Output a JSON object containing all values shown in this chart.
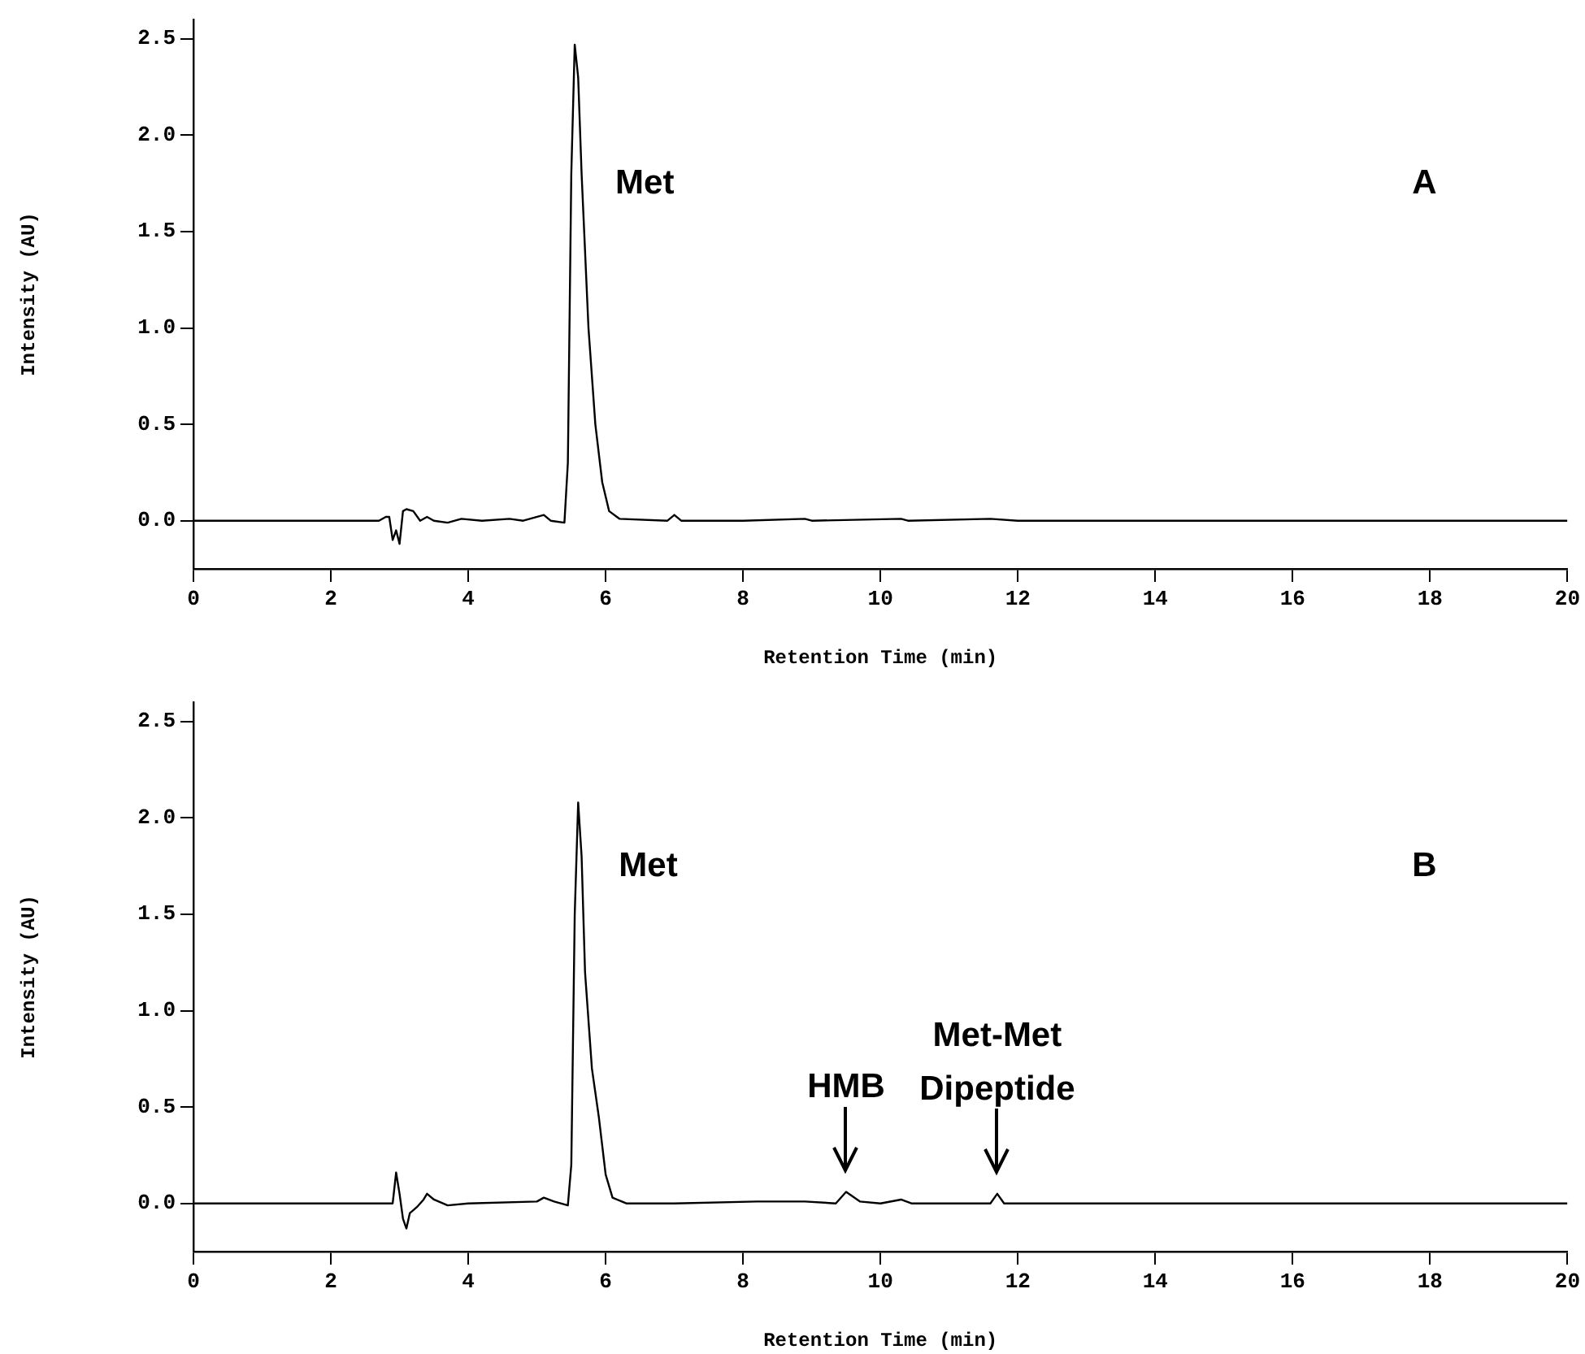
{
  "chart_data": [
    {
      "type": "line",
      "xlabel": "Retention Time (min)",
      "ylabel": "Intensity (AU)",
      "xlim": [
        0,
        20
      ],
      "ylim": [
        -0.25,
        2.6
      ],
      "xticks": [
        0,
        2,
        4,
        6,
        8,
        10,
        12,
        14,
        16,
        18,
        20
      ],
      "yticks": [
        {
          "value": 0,
          "label": "0.0"
        },
        0.5,
        {
          "value": 1,
          "label": "1.0"
        },
        1.5,
        {
          "value": 2,
          "label": "2.0"
        },
        2.5
      ],
      "grid": false,
      "legend": false,
      "marker": "none",
      "line_style": "solid",
      "series": [
        {
          "color": "#000000",
          "x": [
            0,
            2.5,
            2.7,
            2.8,
            2.85,
            2.9,
            2.95,
            3.0,
            3.05,
            3.1,
            3.2,
            3.3,
            3.4,
            3.5,
            3.7,
            3.9,
            4.2,
            4.6,
            4.8,
            5.1,
            5.2,
            5.4,
            5.45,
            5.5,
            5.55,
            5.6,
            5.65,
            5.75,
            5.85,
            5.95,
            6.05,
            6.2,
            6.9,
            7.0,
            7.1,
            8.0,
            8.9,
            9.0,
            10.3,
            10.4,
            11.6,
            12,
            20
          ],
          "values": [
            0,
            0,
            0,
            0.02,
            0.02,
            -0.1,
            -0.05,
            -0.12,
            0.05,
            0.06,
            0.05,
            0,
            0.02,
            0,
            -0.01,
            0.01,
            0,
            0.01,
            0,
            0.03,
            0,
            -0.01,
            0.3,
            1.8,
            2.47,
            2.3,
            1.8,
            1.0,
            0.5,
            0.2,
            0.05,
            0.01,
            0,
            0.03,
            0,
            0,
            0.01,
            0,
            0.01,
            0,
            0.01,
            0,
            0
          ]
        }
      ],
      "annotations": [
        "Met",
        "A"
      ]
    },
    {
      "type": "line",
      "xlabel": "Retention Time (min)",
      "ylabel": "Intensity (AU)",
      "xlim": [
        0,
        20
      ],
      "ylim": [
        -0.25,
        2.6
      ],
      "xticks": [
        0,
        2,
        4,
        6,
        8,
        10,
        12,
        14,
        16,
        18,
        20
      ],
      "yticks": [
        {
          "value": 0,
          "label": "0.0"
        },
        0.5,
        {
          "value": 1,
          "label": "1.0"
        },
        1.5,
        {
          "value": 2,
          "label": "2.0"
        },
        2.5
      ],
      "grid": false,
      "legend": false,
      "marker": "none",
      "line_style": "solid",
      "series": [
        {
          "color": "#000000",
          "x": [
            0,
            2.8,
            2.9,
            2.95,
            3.0,
            3.05,
            3.1,
            3.15,
            3.25,
            3.35,
            3.4,
            3.5,
            3.7,
            4.0,
            5.0,
            5.1,
            5.25,
            5.45,
            5.5,
            5.55,
            5.6,
            5.65,
            5.7,
            5.8,
            5.9,
            6.0,
            6.1,
            6.3,
            7.0,
            8.2,
            8.9,
            9.35,
            9.5,
            9.7,
            10.0,
            10.3,
            10.45,
            11.6,
            11.7,
            11.8,
            20
          ],
          "values": [
            0,
            0,
            0,
            0.16,
            0.05,
            -0.08,
            -0.13,
            -0.05,
            -0.02,
            0.02,
            0.05,
            0.02,
            -0.01,
            0,
            0.01,
            0.03,
            0.01,
            -0.01,
            0.2,
            1.5,
            2.08,
            1.8,
            1.2,
            0.7,
            0.45,
            0.15,
            0.03,
            0,
            0,
            0.01,
            0.01,
            0,
            0.06,
            0.01,
            0,
            0.02,
            0,
            0,
            0.05,
            0,
            0
          ]
        }
      ],
      "annotations": [
        "Met",
        "B",
        {
          "text": "HMB",
          "x": 9.5,
          "y": 0.06
        },
        {
          "text": "Met-Met Dipeptide",
          "x": 11.7,
          "y": 0.05
        }
      ]
    }
  ]
}
